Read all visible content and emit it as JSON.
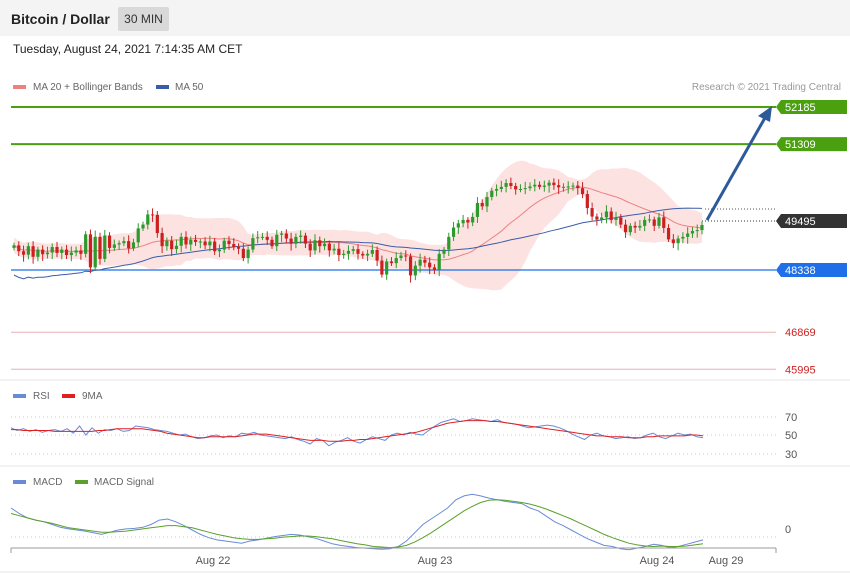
{
  "header": {
    "title": "Bitcoin / Dollar",
    "interval": "30 MIN",
    "timestamp": "Tuesday, August 24, 2021 7:14:35 AM CET"
  },
  "colors": {
    "up_candle": "#2e9a2e",
    "down_candle": "#cc1f1f",
    "ma20": "#f08080",
    "bollinger_fill": "#fde2e2",
    "ma50": "#3a5da8",
    "resistance": "#4aa00f",
    "support": "#1e6fe8",
    "red_level": "#e8b0b0",
    "red_level_text": "#cc2222",
    "current_price_badge": "#333333",
    "arrow": "#2d5a9a",
    "rsi": "#6a8ad8",
    "rsi_ma": "#e02020",
    "macd": "#6a8ad8",
    "macd_signal": "#5aa02a"
  },
  "chart_data": [
    {
      "type": "candlestick",
      "title": "Bitcoin / Dollar",
      "legend": [
        {
          "name": "MA 20 + Bollinger Bands",
          "color": "#f08080"
        },
        {
          "name": "MA 50",
          "color": "#3a5da8"
        }
      ],
      "legend_position": "top-left",
      "credit": "Research © 2021 Trading Central",
      "ylim": [
        45800,
        52500
      ],
      "x_tick_labels": [
        "Aug 22",
        "Aug 23",
        "Aug 24",
        "Aug 29"
      ],
      "candles_close": [
        48920,
        48780,
        48700,
        48900,
        48650,
        48820,
        48710,
        48750,
        48880,
        48740,
        48820,
        48690,
        48750,
        48800,
        48720,
        49180,
        48400,
        49120,
        48600,
        49150,
        48860,
        48940,
        48970,
        49020,
        48850,
        48990,
        49320,
        49410,
        49650,
        49640,
        49210,
        48900,
        49030,
        48830,
        48910,
        49120,
        48940,
        49050,
        49000,
        49010,
        48920,
        49010,
        48780,
        48820,
        49030,
        48950,
        48880,
        48840,
        48620,
        48820,
        49090,
        49110,
        49120,
        49050,
        48900,
        49170,
        49200,
        49080,
        48960,
        49120,
        49150,
        48960,
        48800,
        49040,
        48900,
        48960,
        48800,
        48840,
        48690,
        48720,
        48790,
        48830,
        48720,
        48680,
        48720,
        48810,
        48560,
        48230,
        48540,
        48500,
        48620,
        48680,
        48660,
        48210,
        48440,
        48580,
        48510,
        48400,
        48350,
        48720,
        48820,
        49120,
        49340,
        49440,
        49520,
        49460,
        49590,
        49920,
        49840,
        50060,
        50210,
        50250,
        50300,
        50390,
        50320,
        50240,
        50250,
        50270,
        50310,
        50350,
        50300,
        50330,
        50400,
        50340,
        50290,
        50300,
        50310,
        50330,
        50270,
        50130,
        49800,
        49600,
        49530,
        49580,
        49720,
        49520,
        49580,
        49410,
        49230,
        49380,
        49340,
        49380,
        49520,
        49530,
        49380,
        49580,
        49330,
        49060,
        48970,
        49080,
        49120,
        49200,
        49260,
        49280,
        49400
      ],
      "ma20_band": "upper/lower Bollinger band shaded around MA 20",
      "levels": [
        {
          "label": "52185",
          "value": 52185,
          "kind": "resistance"
        },
        {
          "label": "51309",
          "value": 51309,
          "kind": "resistance"
        },
        {
          "label": "49495",
          "value": 49495,
          "kind": "current"
        },
        {
          "label": "48338",
          "value": 48338,
          "kind": "support"
        },
        {
          "label": "46869",
          "value": 46869,
          "kind": "minor"
        },
        {
          "label": "45995",
          "value": 45995,
          "kind": "minor"
        }
      ]
    },
    {
      "type": "line",
      "legend": [
        {
          "name": "RSI",
          "color": "#6a8ad8"
        },
        {
          "name": "9MA",
          "color": "#e02020"
        }
      ],
      "ylim": [
        25,
        80
      ],
      "y_tick_labels": [
        "70",
        "50",
        "30"
      ],
      "series": [
        {
          "name": "RSI",
          "values": [
            58,
            55,
            57,
            54,
            56,
            53,
            55,
            56,
            54,
            57,
            52,
            60,
            50,
            58,
            52,
            56,
            55,
            57,
            54,
            55,
            60,
            59,
            58,
            56,
            55,
            54,
            52,
            50,
            51,
            48,
            46,
            47,
            49,
            50,
            47,
            49,
            48,
            52,
            51,
            53,
            50,
            49,
            48,
            47,
            46,
            48,
            45,
            43,
            40,
            46,
            44,
            38,
            42,
            44,
            47,
            43,
            41,
            45,
            48,
            46,
            44,
            50,
            52,
            50,
            53,
            51,
            50,
            55,
            60,
            64,
            66,
            68,
            65,
            66,
            68,
            67,
            66,
            65,
            67,
            64,
            63,
            62,
            60,
            58,
            59,
            60,
            61,
            60,
            58,
            55,
            51,
            48,
            45,
            50,
            52,
            49,
            48,
            46,
            47,
            48,
            46,
            47,
            50,
            52,
            48,
            46,
            49,
            52,
            50,
            51,
            48,
            47
          ]
        },
        {
          "name": "9MA",
          "values": [
            56,
            56,
            55,
            55,
            55,
            55,
            55,
            54,
            54,
            54,
            54,
            54,
            54,
            54,
            55,
            55,
            56,
            57,
            57,
            57,
            57,
            57,
            56,
            55,
            54,
            52,
            51,
            50,
            49,
            48,
            47,
            47,
            48,
            48,
            48,
            48,
            48,
            49,
            50,
            51,
            51,
            51,
            50,
            49,
            48,
            47,
            46,
            45,
            44,
            44,
            44,
            43,
            43,
            43,
            44,
            44,
            45,
            45,
            46,
            47,
            48,
            49,
            50,
            51,
            52,
            53,
            55,
            57,
            59,
            61,
            63,
            64,
            65,
            66,
            66,
            66,
            66,
            65,
            65,
            64,
            63,
            62,
            61,
            60,
            59,
            58,
            57,
            56,
            55,
            54,
            53,
            52,
            51,
            50,
            49,
            49,
            48,
            48,
            48,
            47,
            47,
            47,
            48,
            48,
            49,
            49,
            49,
            49,
            49,
            50,
            50,
            49
          ]
        }
      ]
    },
    {
      "type": "line",
      "legend": [
        {
          "name": "MACD",
          "color": "#6a8ad8"
        },
        {
          "name": "MACD Signal",
          "color": "#5aa02a"
        }
      ],
      "y_tick_labels": [
        "0"
      ],
      "ylim": [
        -60,
        90
      ],
      "series": [
        {
          "name": "MACD",
          "values": [
            40,
            30,
            22,
            18,
            15,
            10,
            5,
            2,
            0,
            -2,
            -5,
            -8,
            -4,
            0,
            2,
            3,
            5,
            10,
            18,
            20,
            15,
            8,
            0,
            -8,
            -14,
            -18,
            -20,
            -22,
            -24,
            -20,
            -18,
            -15,
            -12,
            -10,
            -8,
            -9,
            -12,
            -15,
            -20,
            -25,
            -28,
            -30,
            -32,
            -33,
            -34,
            -35,
            -34,
            -30,
            -20,
            -5,
            10,
            20,
            30,
            40,
            55,
            62,
            65,
            62,
            58,
            55,
            52,
            50,
            48,
            40,
            35,
            25,
            15,
            8,
            0,
            -8,
            -16,
            -22,
            -28,
            -30,
            -34,
            -36,
            -33,
            -30,
            -26,
            -28,
            -32,
            -30,
            -26,
            -22,
            -18
          ]
        },
        {
          "name": "MACD Signal",
          "values": [
            30,
            26,
            22,
            18,
            15,
            12,
            8,
            4,
            2,
            0,
            -2,
            -4,
            -4,
            -3,
            -2,
            0,
            2,
            4,
            6,
            8,
            8,
            6,
            4,
            0,
            -4,
            -8,
            -11,
            -14,
            -16,
            -17,
            -17,
            -16,
            -15,
            -13,
            -12,
            -11,
            -11,
            -12,
            -14,
            -16,
            -19,
            -22,
            -25,
            -27,
            -30,
            -31,
            -32,
            -31,
            -28,
            -22,
            -14,
            -5,
            5,
            15,
            25,
            35,
            43,
            50,
            54,
            55,
            54,
            52,
            50,
            47,
            43,
            38,
            32,
            26,
            20,
            13,
            6,
            -1,
            -8,
            -14,
            -19,
            -24,
            -27,
            -29,
            -30,
            -29,
            -30,
            -30,
            -29,
            -27,
            -25
          ]
        }
      ]
    }
  ]
}
